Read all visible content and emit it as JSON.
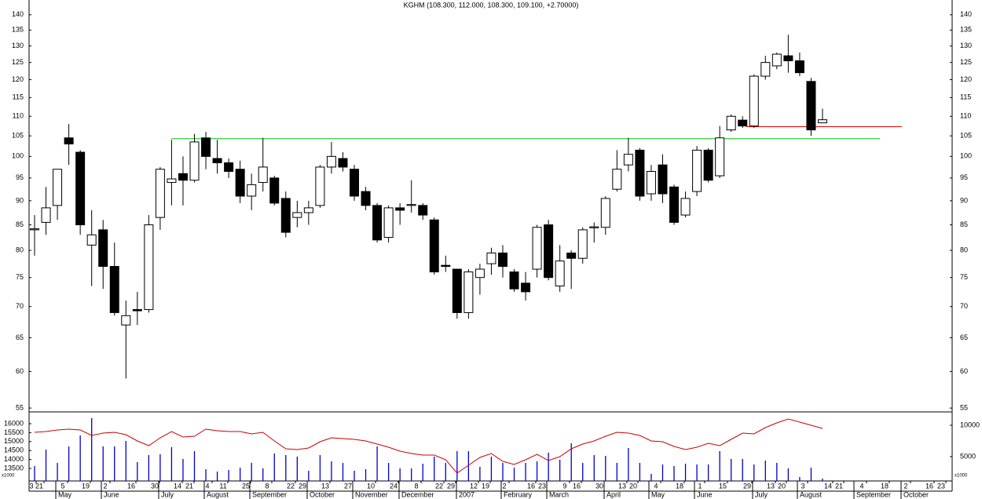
{
  "chart_data": {
    "type": "candlestick",
    "title": "KGHM (108.300, 112.000, 108.300, 109.100, +2.70000)",
    "log": true,
    "ylim": [
      54.5,
      145
    ],
    "yticks": [
      55,
      60,
      65,
      70,
      75,
      80,
      85,
      90,
      95,
      100,
      105,
      110,
      115,
      120,
      125,
      130,
      135,
      140
    ],
    "up_color": "#ffffff",
    "down_color": "#000000",
    "open": [
      84,
      85.5,
      89,
      104.5,
      101,
      81,
      84,
      77,
      67,
      69.5,
      69.5,
      86.5,
      94,
      96,
      94.5,
      104.5,
      99.5,
      98.5,
      97,
      91,
      94,
      95,
      90.5,
      86.5,
      87.5,
      89,
      97.5,
      99.5,
      97,
      92,
      89,
      82.5,
      88.5,
      89,
      89,
      86,
      77.2,
      76.5,
      69,
      75,
      77.5,
      79.5,
      76,
      74,
      76.5,
      85,
      73.5,
      79.5,
      78.5,
      84.4,
      84.5,
      92.5,
      98,
      101.5,
      91.5,
      98,
      93,
      87,
      92,
      101.5,
      95.5,
      106.5,
      109,
      107.5,
      121,
      124,
      127,
      125.5,
      119.5,
      108.3
    ],
    "high": [
      87,
      93,
      97,
      108,
      101.5,
      88,
      86,
      81.5,
      71,
      72.5,
      87,
      97.5,
      104,
      100,
      105.5,
      106,
      104,
      99.5,
      99,
      96,
      104.5,
      95.5,
      92,
      90,
      90,
      98,
      103.5,
      101,
      98,
      93,
      89.5,
      89,
      89.5,
      94.5,
      89.5,
      86.5,
      79,
      76.5,
      76.5,
      77.5,
      80.5,
      81,
      76.5,
      76,
      85,
      86,
      81,
      80,
      84.5,
      85.5,
      91,
      101.5,
      104.5,
      102,
      98,
      100.5,
      93.5,
      92,
      102.5,
      102,
      107.5,
      110.5,
      110,
      121.5,
      127,
      128,
      133.5,
      128,
      120.5,
      112
    ],
    "low": [
      79,
      83,
      86,
      98,
      83,
      73.5,
      73,
      68.5,
      59,
      67,
      69,
      84,
      89,
      89,
      94,
      97,
      96,
      95,
      89.5,
      88,
      92,
      89,
      82.5,
      84.5,
      85,
      88.5,
      96,
      96.5,
      90,
      88,
      81.5,
      81.5,
      85,
      87.5,
      86,
      75.5,
      76,
      68,
      68,
      72,
      75.5,
      75,
      72.5,
      71,
      75,
      74.5,
      72.5,
      73,
      77.5,
      81.5,
      83,
      92,
      96.5,
      90,
      90,
      89.5,
      85,
      86.5,
      91,
      94,
      95,
      106,
      107,
      107,
      120,
      123,
      122,
      121,
      105,
      108.3
    ],
    "close": [
      84.2,
      88.5,
      97,
      103,
      85,
      83,
      77,
      69,
      68.5,
      69.3,
      85,
      97,
      94.8,
      94.5,
      103.5,
      100,
      98.5,
      96.5,
      91,
      93.5,
      97.5,
      89.5,
      83.5,
      87.5,
      88.5,
      97.5,
      100,
      97.5,
      91,
      89,
      82,
      88.5,
      88,
      89.2,
      87,
      76,
      77,
      69,
      76,
      76.5,
      79.5,
      77,
      73,
      72.5,
      84.5,
      75,
      78,
      78.5,
      84,
      84.6,
      90.5,
      97,
      100.5,
      91,
      96.5,
      91.5,
      85.5,
      90.5,
      101.5,
      94.5,
      104.5,
      110,
      107.5,
      121,
      125,
      127.5,
      125.5,
      122,
      106.5,
      109.1
    ],
    "hlines": [
      {
        "value": 104.3,
        "color": "#00cc00"
      },
      {
        "value": 107.3,
        "color": "#dd0000"
      }
    ],
    "volume": {
      "ylim": [
        12800,
        16570
      ],
      "yticks": [
        13500,
        14000,
        14500,
        15000,
        15500,
        16000
      ],
      "y2lim": [
        1125,
        11875
      ],
      "y2ticks": [
        5000,
        10000
      ],
      "unit_label": "x1000",
      "series": [
        {
          "name": "Volume",
          "color": "#0000cc",
          "axis": "y2",
          "values": [
            3500,
            6125,
            4000,
            6625,
            8375,
            11125,
            6625,
            6625,
            7500,
            4125,
            5250,
            5375,
            6500,
            4625,
            5875,
            3000,
            2625,
            2875,
            3250,
            4000,
            3125,
            5500,
            5250,
            5000,
            2750,
            5250,
            4250,
            4000,
            2750,
            3000,
            6625,
            4000,
            3125,
            3125,
            3875,
            5000,
            4000,
            5875,
            5875,
            3375,
            5000,
            4000,
            3250,
            4000,
            4250,
            5625,
            4500,
            7125,
            4000,
            5250,
            5125,
            4000,
            6375,
            4000,
            2250,
            3750,
            3500,
            3875,
            3750,
            3750,
            5875,
            4625,
            4625,
            3750,
            4375,
            4000,
            3125,
            1750,
            3250,
            1500
          ]
        },
        {
          "name": "Moving average",
          "color": "#cc0000",
          "axis": "y2",
          "values": [
            8875,
            9000,
            9250,
            9375,
            9250,
            8375,
            8750,
            8875,
            8500,
            7500,
            6750,
            8000,
            9000,
            8125,
            8250,
            9375,
            9125,
            9000,
            9000,
            8625,
            8875,
            7500,
            6250,
            6125,
            6375,
            7375,
            8000,
            7875,
            7750,
            7500,
            7000,
            6500,
            5875,
            5500,
            5250,
            5250,
            4500,
            2375,
            3625,
            4875,
            5500,
            4250,
            3750,
            4500,
            5375,
            4375,
            5000,
            6250,
            7000,
            7500,
            8250,
            8875,
            8750,
            8375,
            7500,
            7375,
            6625,
            6125,
            6500,
            7125,
            6750,
            7750,
            8750,
            8625,
            9625,
            10375,
            11000,
            10500,
            10000,
            9500
          ]
        }
      ]
    },
    "x_labels": [
      "3",
      "21",
      "5",
      "19",
      "2",
      "16",
      "30",
      "14",
      "21",
      "4",
      "11",
      "25",
      "8",
      "22",
      "29",
      "13",
      "27",
      "10",
      "24",
      "8",
      "22",
      "29",
      "12",
      "19",
      "2",
      "16",
      "23",
      "9",
      "16",
      "30",
      "13",
      "20",
      "4",
      "18",
      "1",
      "15",
      "29",
      "13",
      "20",
      "3",
      "14",
      "21",
      "4",
      "18",
      "2",
      "16",
      "23"
    ],
    "months": [
      "May",
      "June",
      "July",
      "August",
      "September",
      "October",
      "November",
      "December",
      "2007",
      "February",
      "March",
      "April",
      "May",
      "June",
      "July",
      "August",
      "September",
      "October"
    ]
  }
}
